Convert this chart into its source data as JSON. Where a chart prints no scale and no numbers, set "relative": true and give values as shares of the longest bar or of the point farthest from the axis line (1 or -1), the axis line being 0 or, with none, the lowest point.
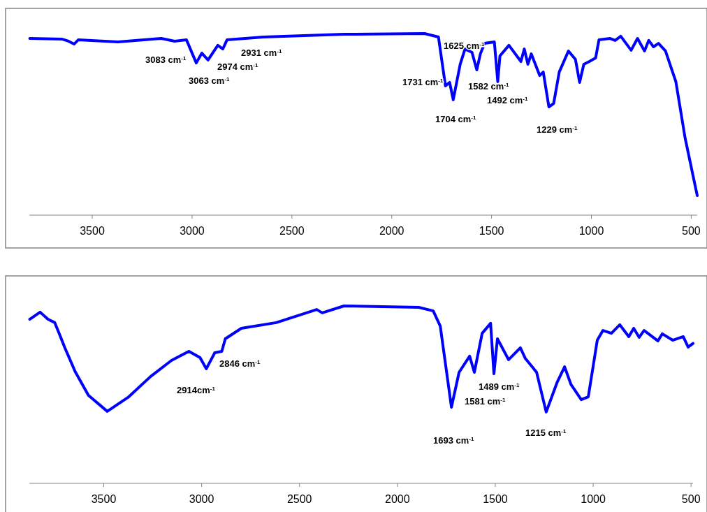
{
  "chart_data": [
    {
      "type": "line",
      "relative": true,
      "xlim": [
        3815,
        470
      ],
      "xticks": [
        3500,
        3000,
        2500,
        2000,
        1500,
        1000,
        500
      ],
      "series": [
        {
          "color": "#0000ff",
          "x": [
            3813,
            3650,
            3619,
            3591,
            3570,
            3371,
            3154,
            3087,
            3028,
            2979,
            2951,
            2920,
            2871,
            2846,
            2825,
            2643,
            2238,
            1836,
            1766,
            1731,
            1710,
            1692,
            1657,
            1633,
            1598,
            1574,
            1556,
            1535,
            1486,
            1469,
            1458,
            1413,
            1353,
            1336,
            1318,
            1301,
            1259,
            1241,
            1213,
            1189,
            1161,
            1115,
            1080,
            1059,
            1038,
            1010,
            979,
            962,
            906,
            881,
            853,
            801,
            769,
            734,
            713,
            689,
            664,
            629,
            577,
            531,
            490,
            470
          ],
          "values": [
            0.973,
            0.969,
            0.958,
            0.942,
            0.965,
            0.954,
            0.973,
            0.958,
            0.965,
            0.838,
            0.892,
            0.854,
            0.935,
            0.915,
            0.965,
            0.981,
            0.996,
            1.0,
            0.981,
            0.712,
            0.731,
            0.635,
            0.831,
            0.915,
            0.896,
            0.8,
            0.888,
            0.946,
            0.954,
            0.735,
            0.877,
            0.935,
            0.846,
            0.915,
            0.831,
            0.888,
            0.769,
            0.788,
            0.596,
            0.615,
            0.788,
            0.904,
            0.858,
            0.731,
            0.831,
            0.846,
            0.865,
            0.965,
            0.973,
            0.962,
            0.985,
            0.908,
            0.973,
            0.904,
            0.962,
            0.927,
            0.946,
            0.904,
            0.735,
            0.427,
            0.212,
            0.108
          ]
        }
      ],
      "annotations": [
        "3083 cm$^{-1}$",
        "3063 cm$^{-1}$",
        "2974 cm$^{-1}$",
        "2931 cm$^{-1}$",
        "1731 cm$^{-1}$",
        "1625 cm$^{-1}$",
        "1582 cm$^{-1}$",
        "1492 cm$^{-1}$",
        "1704 cm$^{-1}$",
        "1229 cm$^{-1}$"
      ]
    },
    {
      "type": "line",
      "relative": true,
      "xlim": [
        3880,
        490
      ],
      "xticks": [
        3500,
        3000,
        2500,
        2000,
        1500,
        1000,
        500
      ],
      "series": [
        {
          "color": "#0000ff",
          "x": [
            3878,
            3825,
            3785,
            3750,
            3721,
            3700,
            3646,
            3578,
            3482,
            3372,
            3261,
            3154,
            3065,
            3008,
            2976,
            2933,
            2897,
            2879,
            2797,
            2619,
            2412,
            2384,
            2273,
            1891,
            1817,
            1781,
            1724,
            1685,
            1631,
            1607,
            1567,
            1524,
            1507,
            1489,
            1432,
            1372,
            1347,
            1289,
            1240,
            1185,
            1146,
            1114,
            1061,
            1025,
            979,
            950,
            907,
            864,
            818,
            793,
            765,
            740,
            669,
            647,
            594,
            540,
            515,
            490
          ],
          "values": [
            0.925,
            0.965,
            0.925,
            0.906,
            0.827,
            0.768,
            0.63,
            0.496,
            0.406,
            0.488,
            0.602,
            0.693,
            0.744,
            0.709,
            0.646,
            0.736,
            0.744,
            0.815,
            0.874,
            0.906,
            0.98,
            0.961,
            1.0,
            0.992,
            0.972,
            0.886,
            0.429,
            0.626,
            0.717,
            0.626,
            0.846,
            0.902,
            0.618,
            0.815,
            0.697,
            0.764,
            0.705,
            0.626,
            0.402,
            0.567,
            0.657,
            0.559,
            0.472,
            0.488,
            0.807,
            0.862,
            0.846,
            0.894,
            0.827,
            0.874,
            0.823,
            0.862,
            0.803,
            0.843,
            0.807,
            0.827,
            0.768,
            0.789
          ]
        }
      ],
      "annotations": [
        "2846 cm$^{-1}$",
        "2914cm$^{-1}$",
        "1489 cm$^{-1}$",
        "1581 cm$^{-1}$",
        "1693 cm$^{-1}$",
        "1215 cm$^{-1}$"
      ]
    }
  ]
}
